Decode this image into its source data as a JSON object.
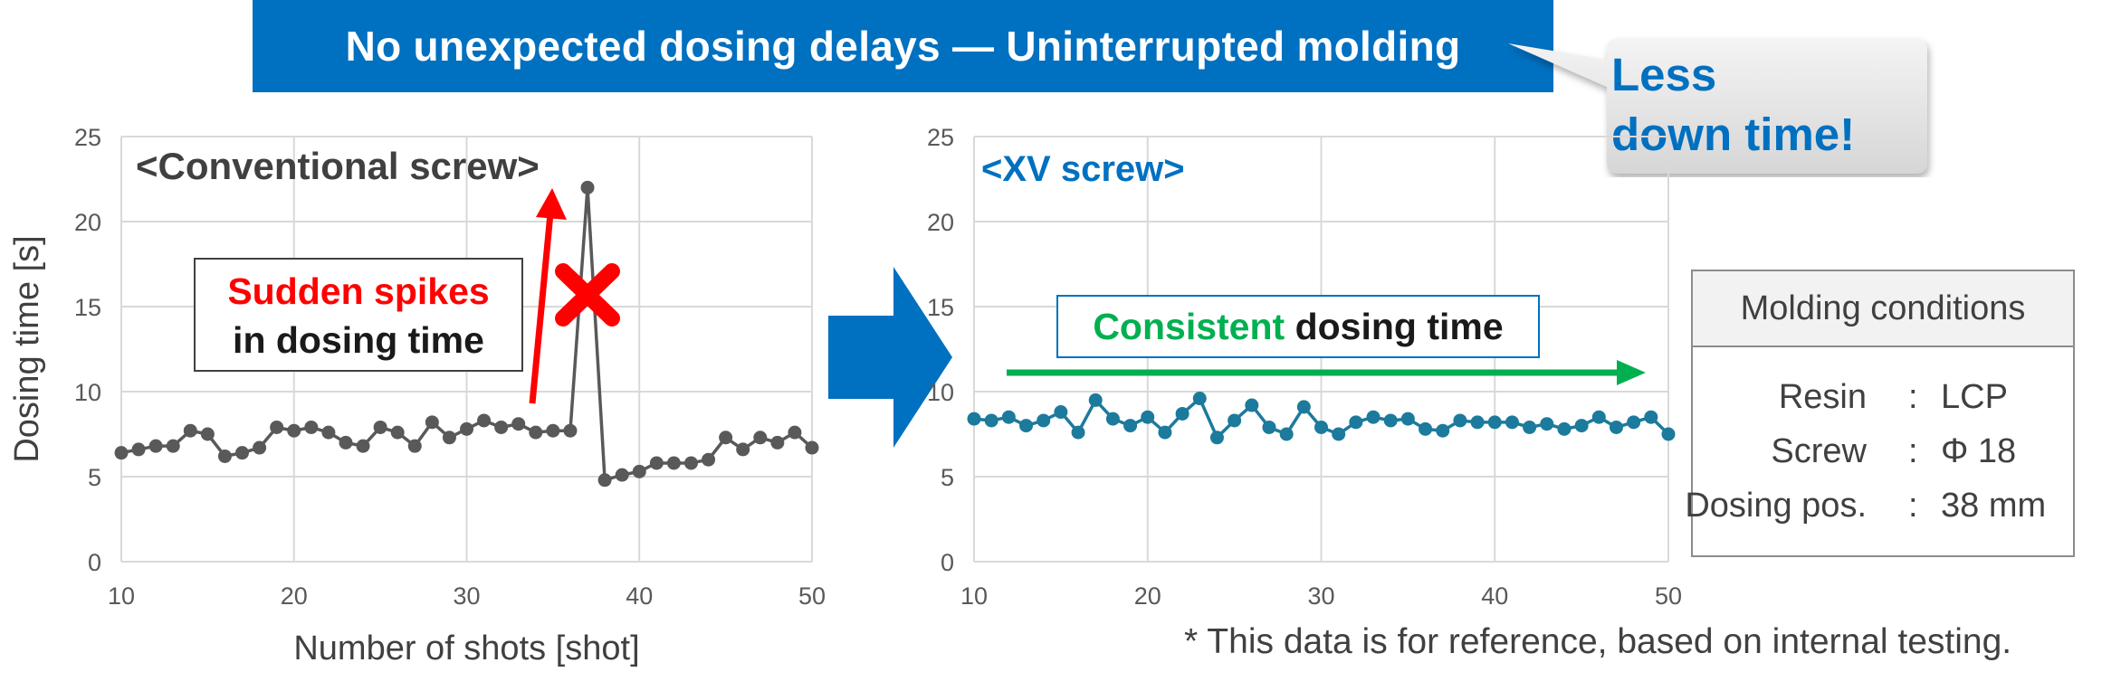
{
  "banner": {
    "text": "No unexpected dosing delays — Uninterrupted molding"
  },
  "callout": {
    "line1": "Less",
    "line2": "down time!"
  },
  "left_panel": {
    "title": "<Conventional screw>",
    "annotation_line1": "Sudden spikes",
    "annotation_line2": "in dosing time"
  },
  "right_panel": {
    "title": "<XV screw>",
    "annotation_green": "Consistent",
    "annotation_rest": " dosing time"
  },
  "conditions": {
    "title": "Molding conditions",
    "rows": [
      {
        "label": "Resin",
        "sep": ":",
        "value": "LCP"
      },
      {
        "label": "Screw",
        "sep": ":",
        "value": "Φ 18"
      },
      {
        "label": "Dosing pos.",
        "sep": ":",
        "value": "38 mm"
      }
    ]
  },
  "footnote": "* This data is for reference, based on internal testing.",
  "colors": {
    "banner": "#0070C0",
    "conventional_series": "#595959",
    "xv_series": "#1C7A9C",
    "spike_annotation": "#FF0000",
    "consistent_annotation": "#00B050",
    "big_arrow": "#0070C0"
  },
  "chart_data": [
    {
      "type": "line",
      "title": "<Conventional screw>",
      "xlabel": "Number of shots [shot]",
      "ylabel": "Dosing time [s]",
      "xlim": [
        10,
        50
      ],
      "ylim": [
        0,
        25
      ],
      "x_ticks": [
        10,
        20,
        30,
        40,
        50
      ],
      "y_ticks": [
        0,
        5,
        10,
        15,
        20,
        25
      ],
      "grid": true,
      "series": [
        {
          "x": [
            10,
            11,
            12,
            13,
            14,
            15,
            16,
            17,
            18,
            19,
            20,
            21,
            22,
            23,
            24,
            25,
            26,
            27,
            28,
            29,
            30,
            31,
            32,
            33,
            34,
            35,
            36,
            37,
            38,
            39,
            40,
            41,
            42,
            43,
            44,
            45,
            46,
            47,
            48,
            49,
            50
          ],
          "values": [
            6.4,
            6.6,
            6.8,
            6.8,
            7.7,
            7.5,
            6.2,
            6.4,
            6.7,
            7.9,
            7.7,
            7.9,
            7.6,
            7.0,
            6.8,
            7.9,
            7.6,
            6.8,
            8.2,
            7.3,
            7.8,
            8.3,
            7.9,
            8.1,
            7.6,
            7.7,
            7.7,
            22.0,
            4.8,
            5.1,
            5.3,
            5.8,
            5.8,
            5.8,
            6.0,
            7.3,
            6.6,
            7.3,
            7.0,
            7.6,
            6.7
          ]
        }
      ]
    },
    {
      "type": "line",
      "title": "<XV screw>",
      "xlabel": "",
      "ylabel": "",
      "xlim": [
        10,
        50
      ],
      "ylim": [
        0,
        25
      ],
      "x_ticks": [
        10,
        20,
        30,
        40,
        50
      ],
      "y_ticks": [
        0,
        5,
        10,
        15,
        20,
        25
      ],
      "grid": true,
      "series": [
        {
          "x": [
            10,
            11,
            12,
            13,
            14,
            15,
            16,
            17,
            18,
            19,
            20,
            21,
            22,
            23,
            24,
            25,
            26,
            27,
            28,
            29,
            30,
            31,
            32,
            33,
            34,
            35,
            36,
            37,
            38,
            39,
            40,
            41,
            42,
            43,
            44,
            45,
            46,
            47,
            48,
            49,
            50
          ],
          "values": [
            8.4,
            8.3,
            8.5,
            8.0,
            8.3,
            8.8,
            7.6,
            9.5,
            8.4,
            8.0,
            8.5,
            7.6,
            8.7,
            9.6,
            7.3,
            8.3,
            9.2,
            7.9,
            7.5,
            9.1,
            7.9,
            7.5,
            8.2,
            8.5,
            8.3,
            8.4,
            7.8,
            7.7,
            8.3,
            8.2,
            8.2,
            8.2,
            7.9,
            8.1,
            7.8,
            8.0,
            8.5,
            7.9,
            8.2,
            8.5,
            7.5
          ]
        }
      ]
    }
  ]
}
